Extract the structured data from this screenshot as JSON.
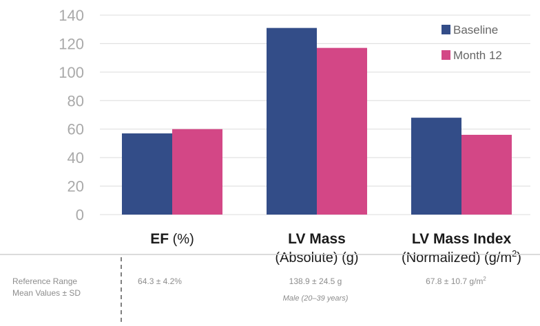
{
  "chart_data": {
    "type": "bar",
    "categories": [
      {
        "bold": "EF",
        "rest": " (%)",
        "line2": "",
        "line2_sup": "",
        "line2_tail": ""
      },
      {
        "bold": "LV Mass",
        "rest": "",
        "line2": "(Absolute) (g)",
        "line2_sup": "",
        "line2_tail": ""
      },
      {
        "bold": "LV Mass Index",
        "rest": "",
        "line2": "(Normalized) (g/m",
        "line2_sup": "2",
        "line2_tail": ")"
      }
    ],
    "series": [
      {
        "name": "Baseline",
        "color": "#334d88",
        "values": [
          57,
          131,
          68
        ]
      },
      {
        "name": "Month 12",
        "color": "#d34786",
        "values": [
          60,
          117,
          56
        ]
      }
    ],
    "yticks": [
      0,
      20,
      40,
      60,
      80,
      100,
      120,
      140
    ],
    "ylim": [
      0,
      140
    ],
    "grid": true,
    "legend_position": "top-right"
  },
  "reference": {
    "label_line1": "Reference Range",
    "label_line2": "Mean Values ± SD",
    "values": [
      {
        "text": "64.3 ± 4.2%",
        "sup": "",
        "note": ""
      },
      {
        "text": "138.9 ± 24.5 g",
        "sup": "",
        "note": "Male (20–39 years)"
      },
      {
        "text": "67.8 ± 10.7 g/m",
        "sup": "2",
        "note": ""
      }
    ]
  }
}
